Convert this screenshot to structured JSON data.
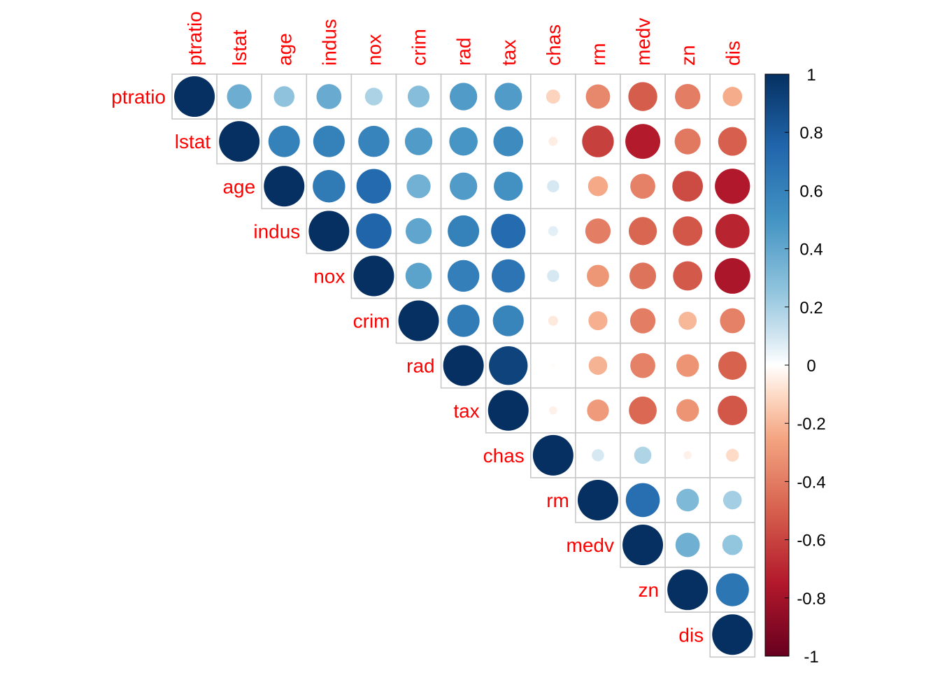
{
  "chart_data": {
    "type": "heatmap",
    "style": "corrplot-circle-upper",
    "variables": [
      "ptratio",
      "lstat",
      "age",
      "indus",
      "nox",
      "crim",
      "rad",
      "tax",
      "chas",
      "rm",
      "medv",
      "zn",
      "dis"
    ],
    "correlation_matrix": [
      [
        1.0,
        0.37,
        0.26,
        0.38,
        0.19,
        0.29,
        0.46,
        0.46,
        -0.12,
        -0.36,
        -0.51,
        -0.39,
        -0.23
      ],
      [
        0.37,
        1.0,
        0.6,
        0.6,
        0.59,
        0.46,
        0.49,
        0.54,
        -0.05,
        -0.61,
        -0.74,
        -0.41,
        -0.5
      ],
      [
        0.26,
        0.6,
        1.0,
        0.64,
        0.73,
        0.35,
        0.46,
        0.51,
        0.09,
        -0.24,
        -0.38,
        -0.57,
        -0.75
      ],
      [
        0.38,
        0.6,
        0.64,
        1.0,
        0.76,
        0.41,
        0.6,
        0.72,
        0.06,
        -0.39,
        -0.48,
        -0.53,
        -0.71
      ],
      [
        0.19,
        0.59,
        0.73,
        0.76,
        1.0,
        0.42,
        0.61,
        0.67,
        0.09,
        -0.3,
        -0.43,
        -0.52,
        -0.77
      ],
      [
        0.29,
        0.46,
        0.35,
        0.41,
        0.42,
        1.0,
        0.63,
        0.58,
        -0.06,
        -0.22,
        -0.39,
        -0.2,
        -0.38
      ],
      [
        0.46,
        0.49,
        0.46,
        0.6,
        0.61,
        0.63,
        1.0,
        0.91,
        -0.01,
        -0.21,
        -0.38,
        -0.31,
        -0.49
      ],
      [
        0.46,
        0.54,
        0.51,
        0.72,
        0.67,
        0.58,
        0.91,
        1.0,
        -0.04,
        -0.29,
        -0.47,
        -0.31,
        -0.53
      ],
      [
        -0.12,
        -0.05,
        0.09,
        0.06,
        0.09,
        -0.06,
        -0.01,
        -0.04,
        1.0,
        0.09,
        0.18,
        -0.04,
        -0.1
      ],
      [
        -0.36,
        -0.61,
        -0.24,
        -0.39,
        -0.3,
        -0.22,
        -0.21,
        -0.29,
        0.09,
        1.0,
        0.7,
        0.31,
        0.21
      ],
      [
        -0.51,
        -0.74,
        -0.38,
        -0.48,
        -0.43,
        -0.39,
        -0.38,
        -0.47,
        0.18,
        0.7,
        1.0,
        0.36,
        0.25
      ],
      [
        -0.39,
        -0.41,
        -0.57,
        -0.53,
        -0.52,
        -0.2,
        -0.31,
        -0.31,
        -0.04,
        0.31,
        0.36,
        1.0,
        0.66
      ],
      [
        -0.23,
        -0.5,
        -0.75,
        -0.71,
        -0.77,
        -0.38,
        -0.49,
        -0.53,
        -0.1,
        0.21,
        0.25,
        0.66,
        1.0
      ]
    ],
    "color_scale": {
      "min": -1,
      "max": 1,
      "ticks": [
        1,
        0.8,
        0.6,
        0.4,
        0.2,
        0,
        -0.2,
        -0.4,
        -0.6,
        -0.8,
        -1
      ],
      "tick_labels": [
        "1",
        "0.8",
        "0.6",
        "0.4",
        "0.2",
        "0",
        "-0.2",
        "-0.4",
        "-0.6",
        "-0.8",
        "-1"
      ],
      "stops": [
        {
          "value": -1,
          "color": "#67001F"
        },
        {
          "value": -0.75,
          "color": "#B2182B"
        },
        {
          "value": -0.5,
          "color": "#D6604D"
        },
        {
          "value": -0.25,
          "color": "#F4A582"
        },
        {
          "value": -0.1,
          "color": "#FDDBC7"
        },
        {
          "value": 0,
          "color": "#FFFFFF"
        },
        {
          "value": 0.1,
          "color": "#D1E5F0"
        },
        {
          "value": 0.25,
          "color": "#92C5DE"
        },
        {
          "value": 0.5,
          "color": "#4393C3"
        },
        {
          "value": 0.75,
          "color": "#2166AC"
        },
        {
          "value": 1,
          "color": "#053061"
        }
      ]
    },
    "label_color": "#FF0000",
    "grid_color": "#C8C8C8",
    "legend_placement": "right",
    "title": ""
  }
}
